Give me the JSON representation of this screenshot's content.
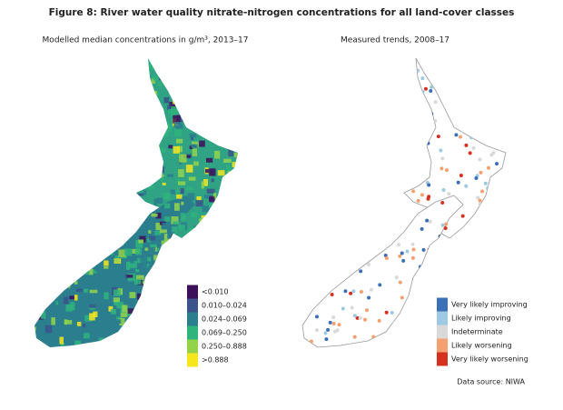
{
  "title": "Figure 8: River water quality nitrate-nitrogen concentrations for all land-cover classes",
  "left_map": {
    "subtitle": "Modelled median concentrations in g/m³, 2013–17",
    "legend": [
      {
        "label": "<0.010",
        "color": "#3d0f5b"
      },
      {
        "label": "0.010–0.024",
        "color": "#3b528b"
      },
      {
        "label": "0.024–0.069",
        "color": "#2a7e8e"
      },
      {
        "label": "0.069–0.250",
        "color": "#2fb47c"
      },
      {
        "label": "0.250–0.888",
        "color": "#93d34a"
      },
      {
        "label": ">0.888",
        "color": "#f6e620"
      }
    ]
  },
  "right_map": {
    "subtitle": "Measured trends, 2008–17",
    "legend": [
      {
        "label": "Very likely improving",
        "color": "#3b6fb6"
      },
      {
        "label": "Likely improving",
        "color": "#9ec9e2"
      },
      {
        "label": "Indeterminate",
        "color": "#d9d9d9"
      },
      {
        "label": "Likely worsening",
        "color": "#f4a070"
      },
      {
        "label": "Very likely worsening",
        "color": "#d7301f"
      }
    ]
  },
  "source": "Data source: NIWA"
}
